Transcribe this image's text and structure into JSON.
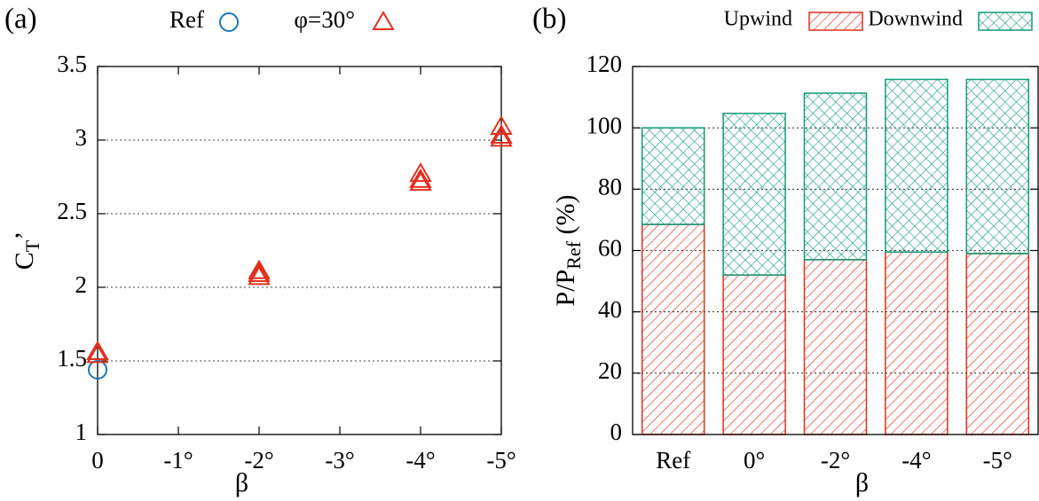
{
  "chart_data": [
    {
      "type": "scatter",
      "panel": "(a)",
      "ylabel": {
        "text": "C",
        "sub": "T",
        "after": "’"
      },
      "xlabel": "β",
      "xlim": [
        0,
        -5
      ],
      "xticks": [
        0,
        {
          "value": -1,
          "label": "-1°"
        },
        {
          "value": -2,
          "label": "-2°"
        },
        {
          "value": -3,
          "label": "-3°"
        },
        {
          "value": -4,
          "label": "-4°"
        },
        {
          "value": -5,
          "label": "-5°"
        }
      ],
      "ylim": [
        1,
        3.5
      ],
      "yticks": [
        1,
        1.5,
        2,
        2.5,
        3,
        3.5
      ],
      "grid": true,
      "series": [
        {
          "name": "Ref",
          "color": "#1a78b8",
          "marker": "circle",
          "x": [
            0
          ],
          "values": [
            1.44
          ]
        },
        {
          "name": "φ=30°",
          "color": "#e0301e",
          "marker": "triangle",
          "x": [
            0,
            0,
            -2,
            -2,
            -2,
            -4,
            -4,
            -4,
            -5,
            -5,
            -5
          ],
          "values": [
            1.54,
            1.56,
            2.07,
            2.09,
            2.11,
            2.71,
            2.73,
            2.77,
            3.01,
            3.03,
            3.09
          ]
        }
      ]
    },
    {
      "type": "bar",
      "stacked": true,
      "panel": "(b)",
      "ylabel": {
        "text": "P/P",
        "sub": "Ref",
        "after": " (%)"
      },
      "xlabel": "β",
      "categories": [
        "Ref",
        "0°",
        "-2°",
        "-4°",
        "-5°"
      ],
      "ylim": [
        0,
        120
      ],
      "yticks": [
        0,
        20,
        40,
        60,
        80,
        100,
        120
      ],
      "grid": true,
      "series": [
        {
          "name": "Upwind",
          "color": "#e0301e",
          "pattern": "hatch",
          "values": [
            68.5,
            52,
            57,
            59.5,
            59
          ]
        },
        {
          "name": "Downwind",
          "color": "#14997a",
          "pattern": "crosshatch",
          "values": [
            31.5,
            52.7,
            54.3,
            56.3,
            56.8
          ]
        }
      ]
    }
  ]
}
